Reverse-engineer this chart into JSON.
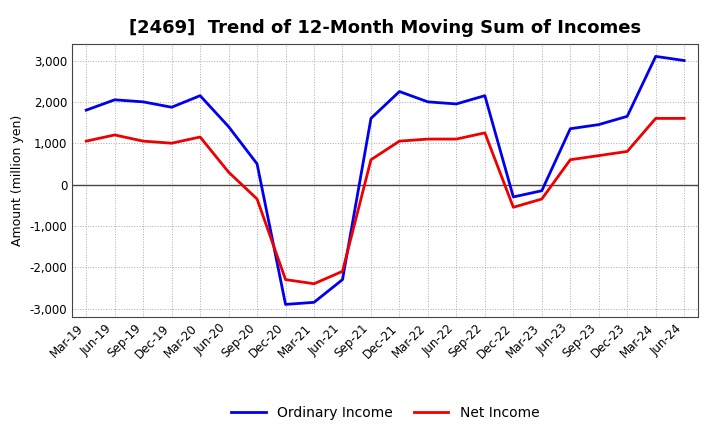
{
  "title": "[2469]  Trend of 12-Month Moving Sum of Incomes",
  "ylabel": "Amount (million yen)",
  "background_color": "#ffffff",
  "plot_bg_color": "#ffffff",
  "grid_color": "#aaaaaa",
  "x_labels": [
    "Mar-19",
    "Jun-19",
    "Sep-19",
    "Dec-19",
    "Mar-20",
    "Jun-20",
    "Sep-20",
    "Dec-20",
    "Mar-21",
    "Jun-21",
    "Sep-21",
    "Dec-21",
    "Mar-22",
    "Jun-22",
    "Sep-22",
    "Dec-22",
    "Mar-23",
    "Jun-23",
    "Sep-23",
    "Dec-23",
    "Mar-24",
    "Jun-24"
  ],
  "ordinary_income": [
    1800,
    2050,
    2000,
    1870,
    2150,
    1400,
    500,
    -2900,
    -2850,
    -2300,
    1600,
    2250,
    2000,
    1950,
    2150,
    -300,
    -150,
    1350,
    1450,
    1650,
    3100,
    3000
  ],
  "net_income": [
    1050,
    1200,
    1050,
    1000,
    1150,
    300,
    -350,
    -2300,
    -2400,
    -2100,
    600,
    1050,
    1100,
    1100,
    1250,
    -550,
    -350,
    600,
    700,
    800,
    1600,
    1600
  ],
  "ordinary_color": "#0000ee",
  "net_color": "#ee0000",
  "ylim": [
    -3200,
    3400
  ],
  "yticks": [
    -3000,
    -2000,
    -1000,
    0,
    1000,
    2000,
    3000
  ],
  "line_width": 2.0,
  "title_fontsize": 13,
  "axis_fontsize": 9,
  "tick_fontsize": 8.5
}
